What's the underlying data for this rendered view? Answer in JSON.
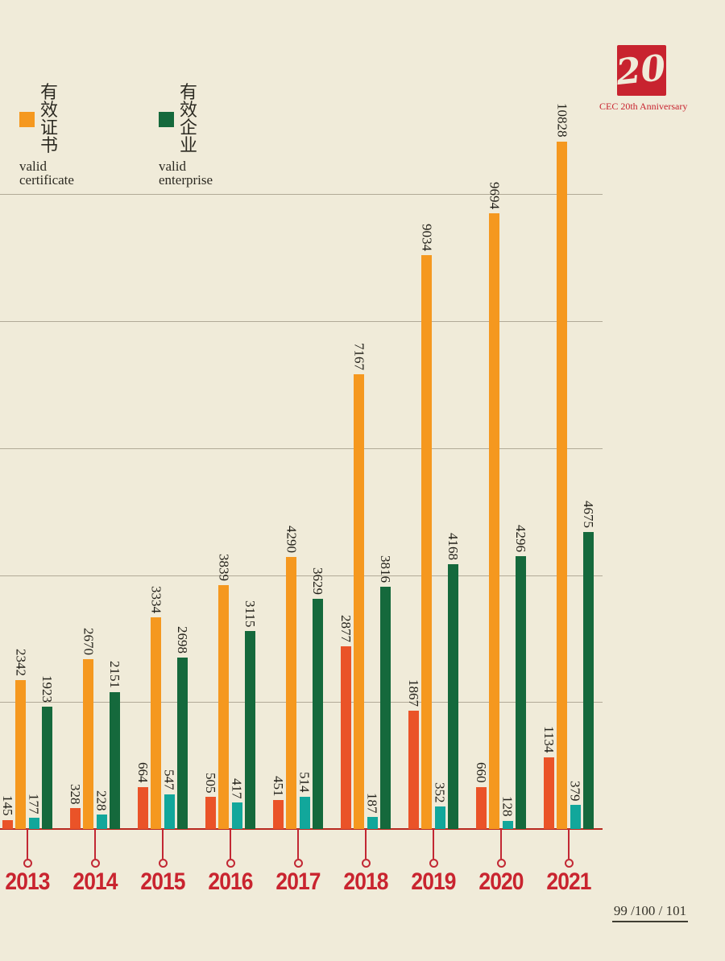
{
  "page": {
    "background": "#f0ebd9"
  },
  "legend": {
    "items": [
      {
        "label_cn": "有效证书",
        "label_en": "valid certificate",
        "color": "#F5981F"
      },
      {
        "label_cn": "有效企业",
        "label_en": "valid enterprise",
        "color": "#15693C"
      }
    ]
  },
  "logo": {
    "number": "20",
    "caption": "CEC 20th Anniversary",
    "square_color": "#C8232F",
    "caption_color": "#C8232F"
  },
  "chart_data": {
    "type": "bar",
    "categories": [
      "2013",
      "2014",
      "2015",
      "2016",
      "2017",
      "2018",
      "2019",
      "2020",
      "2021"
    ],
    "series": [
      {
        "name": "unlabeled-red",
        "color": "#EA5328",
        "values": [
          145,
          328,
          664,
          505,
          451,
          2877,
          1867,
          660,
          1134
        ]
      },
      {
        "name": "有效证书 valid certificate",
        "color": "#F5981F",
        "values": [
          2342,
          2670,
          3334,
          3839,
          4290,
          7167,
          9034,
          9694,
          10828
        ]
      },
      {
        "name": "unlabeled-teal",
        "color": "#12A79B",
        "values": [
          177,
          228,
          547,
          417,
          514,
          187,
          352,
          128,
          379
        ]
      },
      {
        "name": "有效企业 valid enterprise",
        "color": "#15693C",
        "values": [
          1923,
          2151,
          2698,
          3115,
          3629,
          3816,
          4168,
          4296,
          4675
        ]
      }
    ],
    "bar_labels_shown": true,
    "bar_label_rotation_deg": 90,
    "ylim": [
      0,
      13000
    ],
    "gridline_values": [
      2000,
      4000,
      6000,
      8000,
      10000
    ],
    "gridlines_labeled": false,
    "legend_position": "top-left",
    "axis_color": "#B7281F",
    "year_label_color": "#C9242F",
    "grid_color": "#B1AA97"
  },
  "footer": {
    "page_numbers": "99 /100 / 101"
  }
}
